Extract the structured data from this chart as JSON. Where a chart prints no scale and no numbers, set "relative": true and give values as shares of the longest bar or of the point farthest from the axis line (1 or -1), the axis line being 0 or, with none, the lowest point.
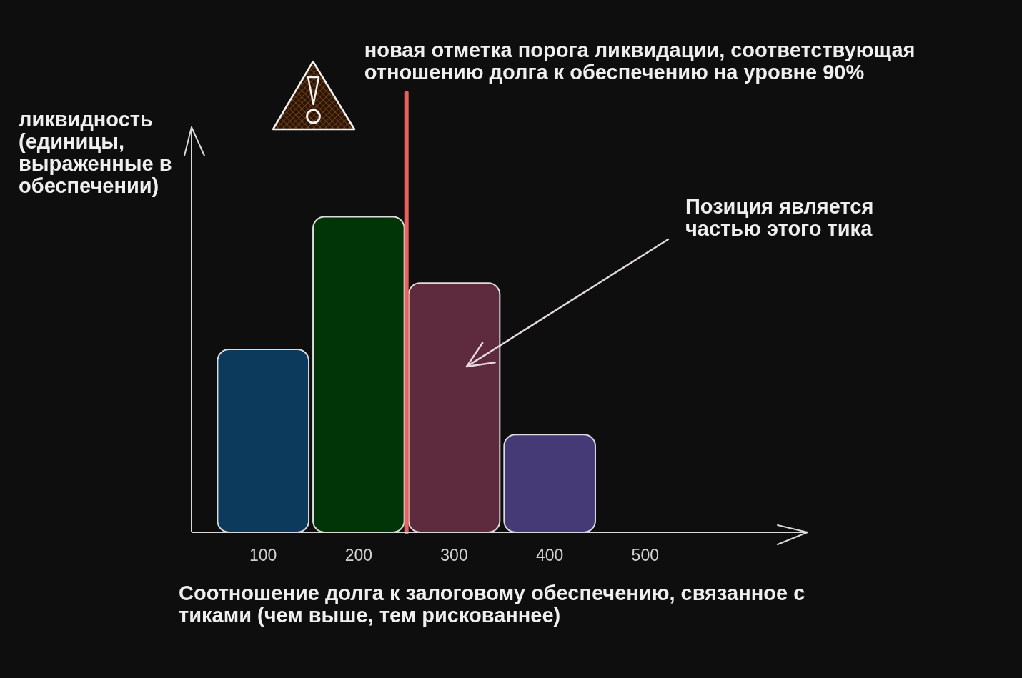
{
  "chart_data": {
    "type": "bar",
    "x": [
      100,
      200,
      300,
      400
    ],
    "values": [
      0.58,
      1,
      0.79,
      0.31
    ],
    "colors": [
      "#0b3a5c",
      "#013508",
      "#5e2a3e",
      "#463a76"
    ],
    "relative": true,
    "xlim": [
      25,
      670
    ],
    "xticks": [
      100,
      200,
      300,
      400,
      500
    ],
    "xlabel": "Соотношение долга к залоговому обеспечению, связанное с тиками (чем выше, тем рискованнее)",
    "ylabel": "ликвидность (единицы, выраженные в обеспечении)",
    "ref_lines": [
      {
        "axis": "x",
        "value": 250,
        "label": "новая отметка порога ликвидации, соответствующая отношению долга к обеспечению на уровне 90%",
        "color": "#e8615c"
      }
    ],
    "annotations": [
      "Позиция является частью этого тика"
    ]
  }
}
